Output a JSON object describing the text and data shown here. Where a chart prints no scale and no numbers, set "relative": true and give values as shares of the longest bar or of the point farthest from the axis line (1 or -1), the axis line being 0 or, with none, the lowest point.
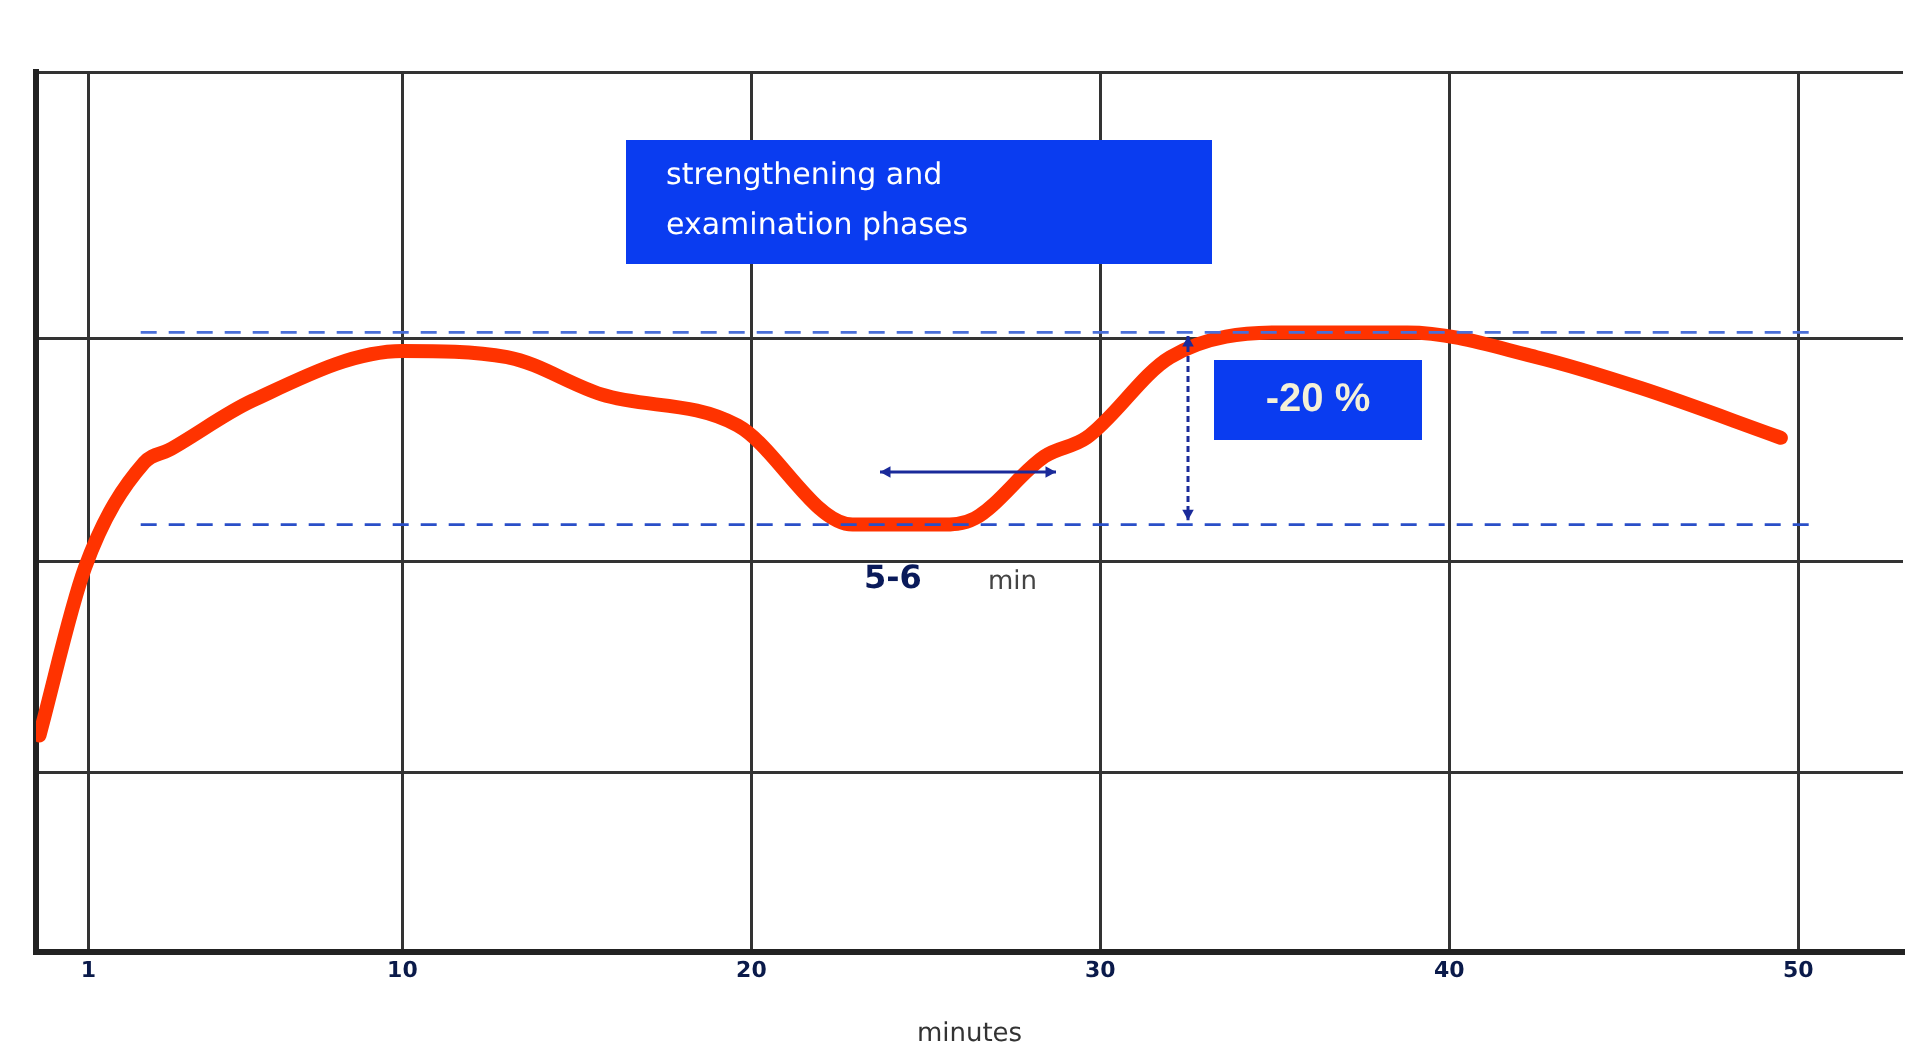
{
  "chart_data": {
    "type": "line",
    "relative": true,
    "xlabel": "minutes",
    "x": [
      -0.4,
      0.9,
      2.6,
      3.3,
      5.7,
      10,
      13,
      15.7,
      19.6,
      22.9,
      25.4,
      26.4,
      28.4,
      29.6,
      32,
      35.2,
      38.8,
      42.5,
      45.5,
      49.5
    ],
    "series": [
      {
        "color": "#ff3300",
        "values": [
          0.35,
          0.62,
          0.79,
          0.81,
          0.89,
          0.97,
          0.96,
          0.9,
          0.85,
          0.69,
          0.69,
          0.7,
          0.8,
          0.83,
          0.96,
          1,
          1,
          0.96,
          0.91,
          0.83
        ]
      }
    ],
    "xlim": [
      -0.5,
      53
    ],
    "xticks": [
      1,
      10,
      20,
      30,
      40,
      50
    ],
    "ref_lines": [
      {
        "axis": "y",
        "value": 1,
        "color": "#4a6fd8",
        "line_style": "dashed"
      },
      {
        "axis": "y",
        "value": 0.69,
        "color": "#2a4fc8",
        "line_style": "dashed"
      }
    ],
    "annotations": [
      "strengthening and\nexamination phases",
      "-20 %",
      "5-6",
      "min"
    ],
    "grid": true,
    "marker": "none",
    "legend": false
  }
}
